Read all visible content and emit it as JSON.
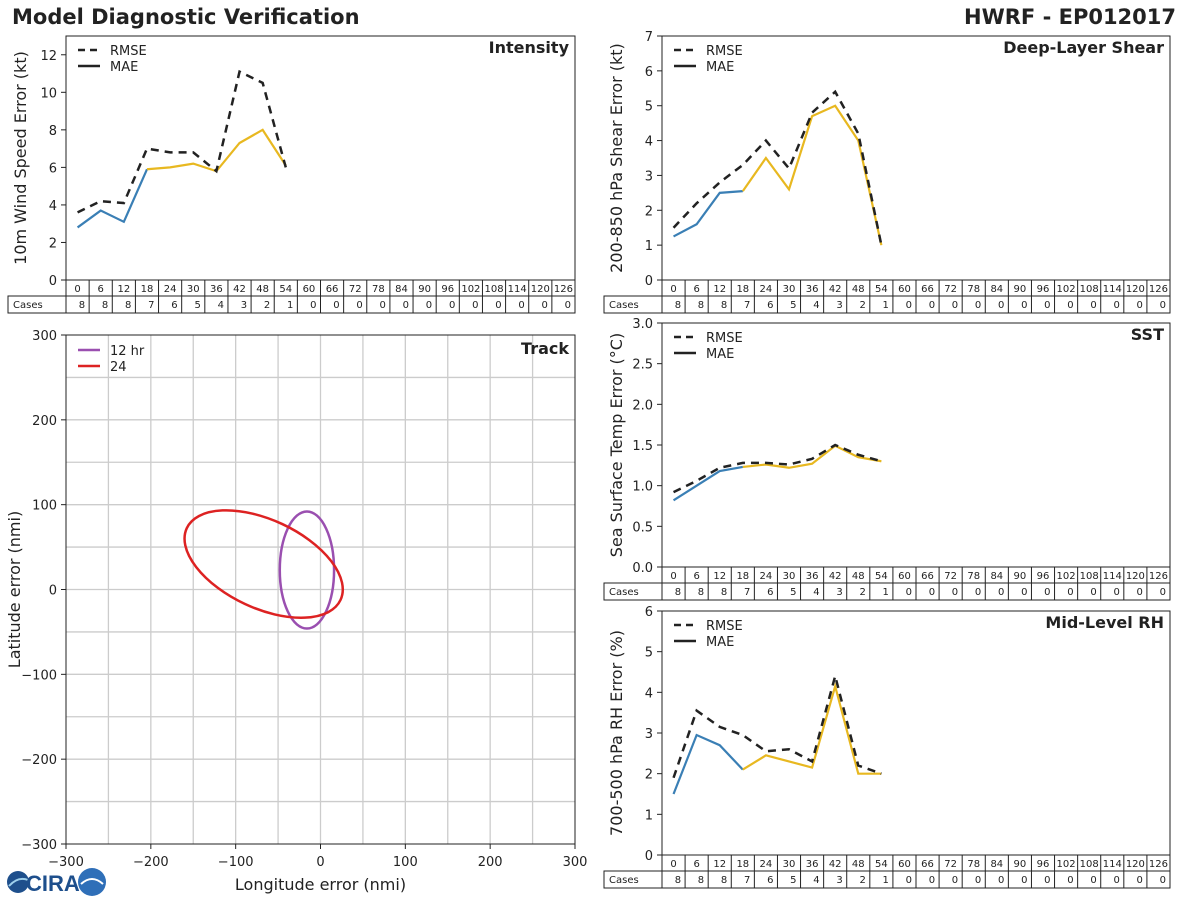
{
  "header": {
    "title": "Model Diagnostic Verification",
    "storm_id": "HWRF - EP012017"
  },
  "colors": {
    "rmse": "#222222",
    "mae_early": "#3a7fb5",
    "mae_late": "#e8b820",
    "track_12": "#9a4fb0",
    "track_24": "#dd2222"
  },
  "table": {
    "hours": [
      "0",
      "6",
      "12",
      "18",
      "24",
      "30",
      "36",
      "42",
      "48",
      "54",
      "60",
      "66",
      "72",
      "78",
      "84",
      "90",
      "96",
      "102",
      "108",
      "114",
      "120",
      "126"
    ],
    "cases_label": "Cases",
    "cases": [
      "8",
      "8",
      "8",
      "7",
      "6",
      "5",
      "4",
      "3",
      "2",
      "1",
      "0",
      "0",
      "0",
      "0",
      "0",
      "0",
      "0",
      "0",
      "0",
      "0",
      "0",
      "0"
    ]
  },
  "logo": {
    "text": "CIRA",
    "icon": "cira-logo-icon"
  },
  "chart_data": [
    {
      "id": "intensity",
      "type": "line",
      "title": "Intensity",
      "ylabel": "10m Wind Speed Error (kt)",
      "ylim": [
        0,
        13
      ],
      "yticks": [
        "0",
        "2",
        "4",
        "6",
        "8",
        "10",
        "12"
      ],
      "legend": [
        "RMSE",
        "MAE"
      ],
      "x": [
        0,
        6,
        12,
        18,
        24,
        30,
        36,
        42,
        48,
        54
      ],
      "series": [
        {
          "name": "RMSE",
          "values": [
            3.6,
            4.2,
            4.1,
            7.0,
            6.8,
            6.8,
            5.8,
            11.1,
            10.5,
            6.0
          ]
        },
        {
          "name": "MAE",
          "values": [
            2.8,
            3.7,
            3.1,
            5.9,
            6.0,
            6.2,
            5.8,
            7.3,
            8.0,
            6.1
          ]
        }
      ]
    },
    {
      "id": "shear",
      "type": "line",
      "title": "Deep-Layer Shear",
      "ylabel": "200-850 hPa Shear Error (kt)",
      "ylim": [
        0,
        7
      ],
      "yticks": [
        "0",
        "1",
        "2",
        "3",
        "4",
        "5",
        "6",
        "7"
      ],
      "legend": [
        "RMSE",
        "MAE"
      ],
      "x": [
        0,
        6,
        12,
        18,
        24,
        30,
        36,
        42,
        48,
        54
      ],
      "series": [
        {
          "name": "RMSE",
          "values": [
            1.5,
            2.2,
            2.8,
            3.3,
            4.0,
            3.2,
            4.8,
            5.4,
            4.2,
            1.0
          ]
        },
        {
          "name": "MAE",
          "values": [
            1.25,
            1.6,
            2.5,
            2.55,
            3.5,
            2.6,
            4.7,
            5.0,
            4.0,
            1.0
          ]
        }
      ]
    },
    {
      "id": "sst",
      "type": "line",
      "title": "SST",
      "ylabel": "Sea Surface Temp Error (°C)",
      "ylim": [
        0,
        3
      ],
      "yticks": [
        "0.0",
        "0.5",
        "1.0",
        "1.5",
        "2.0",
        "2.5",
        "3.0"
      ],
      "legend": [
        "RMSE",
        "MAE"
      ],
      "x": [
        0,
        6,
        12,
        18,
        24,
        30,
        36,
        42,
        48,
        54
      ],
      "series": [
        {
          "name": "RMSE",
          "values": [
            0.92,
            1.06,
            1.22,
            1.28,
            1.28,
            1.26,
            1.33,
            1.5,
            1.38,
            1.3
          ]
        },
        {
          "name": "MAE",
          "values": [
            0.82,
            1.0,
            1.18,
            1.23,
            1.26,
            1.22,
            1.27,
            1.49,
            1.35,
            1.3
          ]
        }
      ]
    },
    {
      "id": "rh",
      "type": "line",
      "title": "Mid-Level RH",
      "ylabel": "700-500 hPa RH Error (%)",
      "ylim": [
        0,
        6
      ],
      "yticks": [
        "0",
        "1",
        "2",
        "3",
        "4",
        "5",
        "6"
      ],
      "legend": [
        "RMSE",
        "MAE"
      ],
      "x": [
        0,
        6,
        12,
        18,
        24,
        30,
        36,
        42,
        48,
        54
      ],
      "series": [
        {
          "name": "RMSE",
          "values": [
            1.9,
            3.55,
            3.15,
            2.95,
            2.55,
            2.6,
            2.3,
            4.4,
            2.2,
            2.0
          ]
        },
        {
          "name": "MAE",
          "values": [
            1.5,
            2.95,
            2.7,
            2.1,
            2.45,
            2.3,
            2.15,
            4.15,
            2.0,
            2.0
          ]
        }
      ]
    },
    {
      "id": "track",
      "type": "scatter",
      "title": "Track",
      "xlabel": "Longitude error (nmi)",
      "ylabel": "Latitude error (nmi)",
      "xlim": [
        -300,
        300
      ],
      "ylim": [
        -300,
        300
      ],
      "xticks": [
        "−300",
        "−200",
        "−100",
        "0",
        "100",
        "200",
        "300"
      ],
      "yticks": [
        "−300",
        "−200",
        "−100",
        "0",
        "100",
        "200",
        "300"
      ],
      "grid_step": 50,
      "legend": [
        "12 hr",
        "24"
      ],
      "ellipses": [
        {
          "name": "12 hr",
          "cx": -16,
          "cy": 23,
          "rx": 32,
          "ry": 69,
          "angle_deg": 0
        },
        {
          "name": "24",
          "cx": -67,
          "cy": 30,
          "rx": 100,
          "ry": 52,
          "angle_deg": 25
        }
      ]
    }
  ]
}
